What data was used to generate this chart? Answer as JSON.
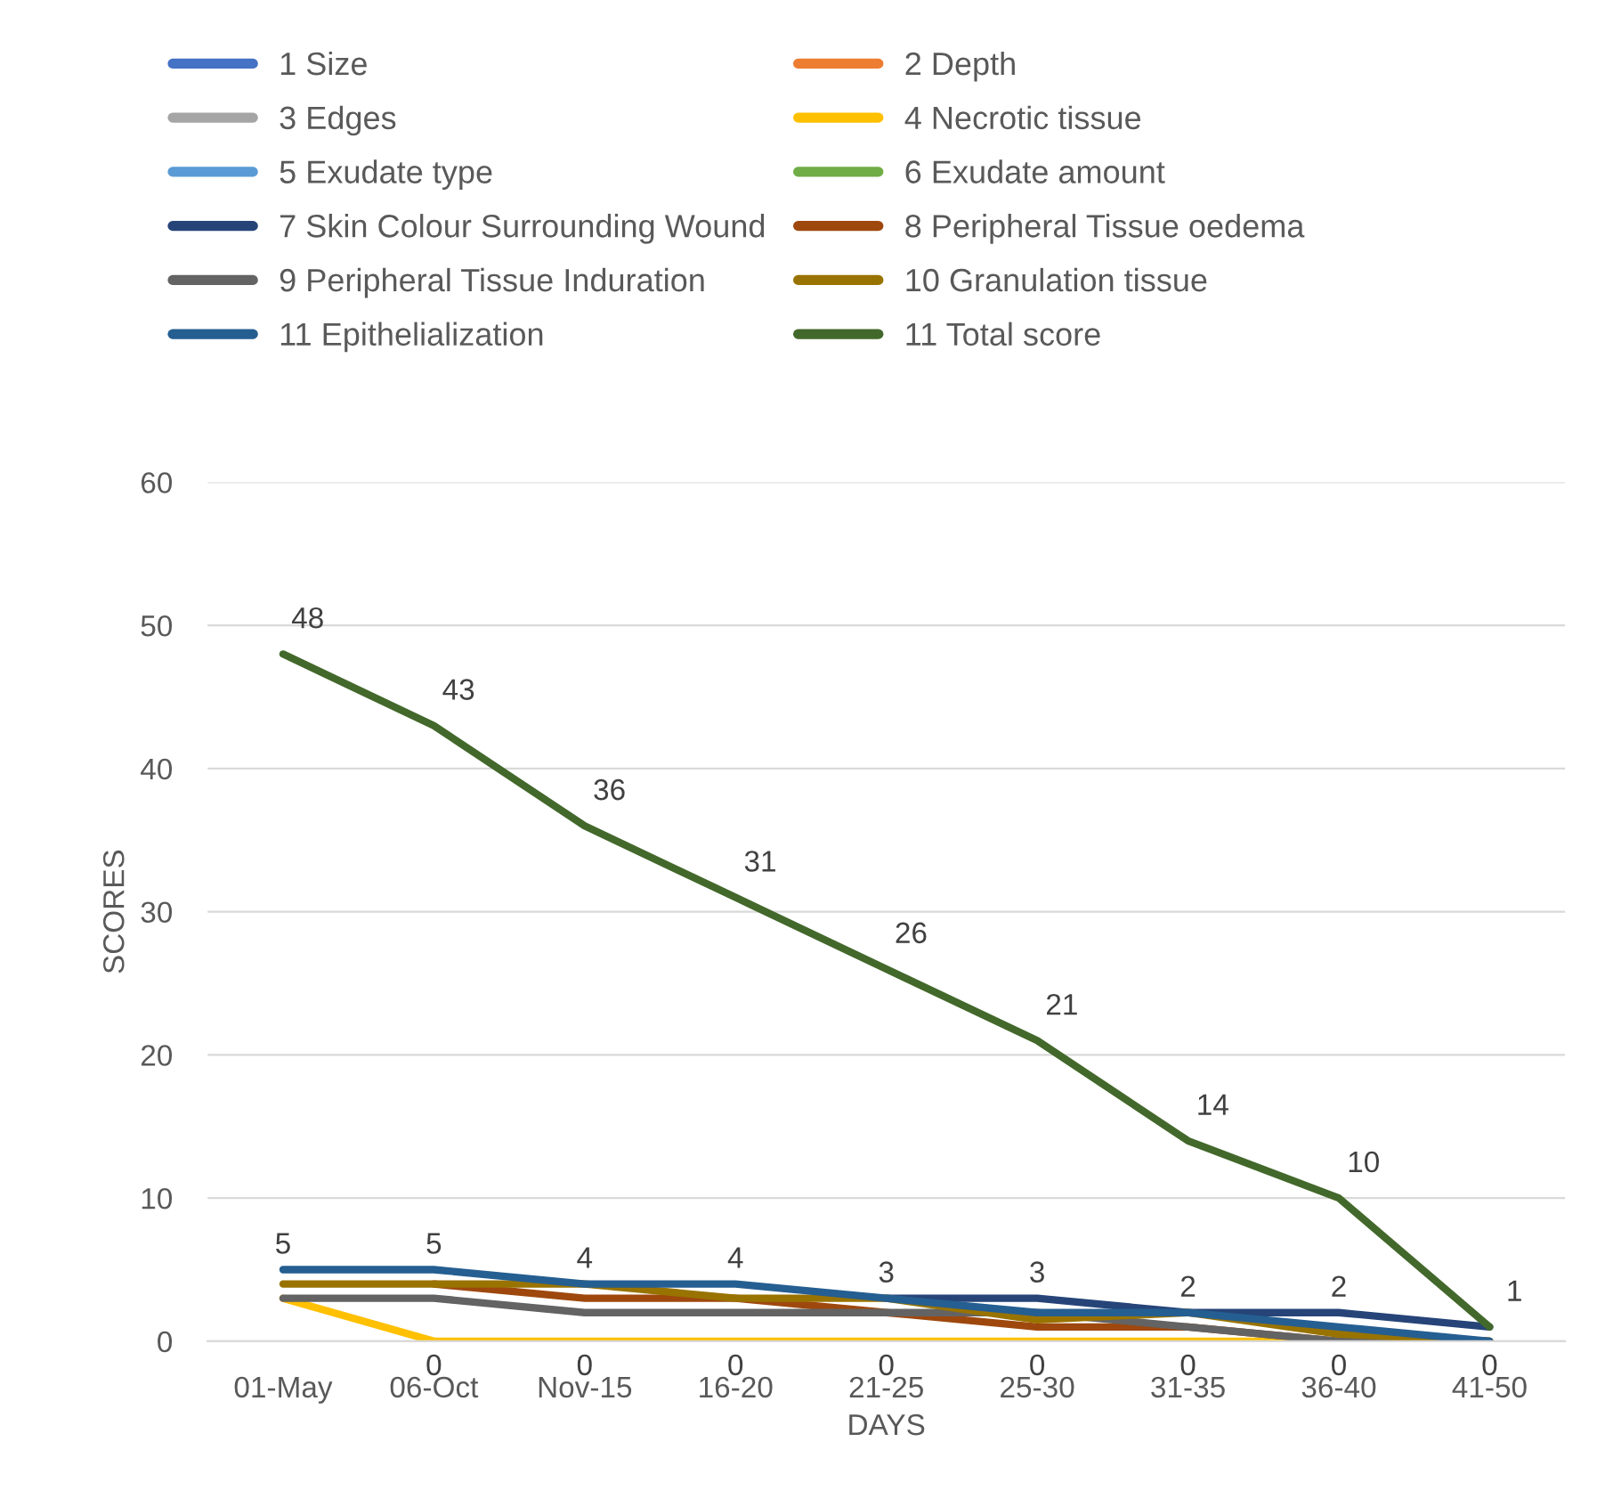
{
  "chart_data": {
    "type": "line",
    "xlabel": "DAYS",
    "ylabel": "SCORES",
    "categories": [
      "01-May",
      "06-Oct",
      "Nov-15",
      "16-20",
      "21-25",
      "25-30",
      "31-35",
      "36-40",
      "41-50"
    ],
    "ylim": [
      0,
      60
    ],
    "yticks": [
      0,
      10,
      20,
      30,
      40,
      50,
      60
    ],
    "grid": "y",
    "legend": "top",
    "marker": "none",
    "line_style": "solid",
    "series": [
      {
        "name": "1 Size",
        "color": "#4472c4",
        "values": [
          null,
          null,
          null,
          null,
          null,
          null,
          null,
          null,
          null
        ]
      },
      {
        "name": "2 Depth",
        "color": "#ed7d31",
        "values": [
          null,
          null,
          null,
          null,
          null,
          null,
          null,
          null,
          null
        ]
      },
      {
        "name": "3 Edges",
        "color": "#a5a5a5",
        "values": [
          null,
          null,
          null,
          null,
          null,
          null,
          null,
          null,
          null
        ]
      },
      {
        "name": "4 Necrotic tissue",
        "color": "#ffc000",
        "values": [
          3,
          0,
          0,
          0,
          0,
          0,
          0,
          0,
          0
        ],
        "value_labels": [
          null,
          "0",
          "0",
          "0",
          "0",
          "0",
          "0",
          "0",
          "0"
        ]
      },
      {
        "name": "5 Exudate type",
        "color": "#5b9bd5",
        "values": [
          null,
          null,
          null,
          null,
          null,
          null,
          null,
          null,
          null
        ]
      },
      {
        "name": "6 Exudate amount",
        "color": "#70ad47",
        "values": [
          null,
          null,
          null,
          null,
          null,
          null,
          null,
          null,
          null
        ]
      },
      {
        "name": "7 Skin Colour Surrounding Wound",
        "color": "#264478",
        "values": [
          null,
          null,
          null,
          null,
          3,
          3,
          2,
          2,
          1
        ],
        "value_labels": [
          null,
          null,
          null,
          null,
          "3",
          "3",
          "2",
          "2",
          null
        ]
      },
      {
        "name": "8 Peripheral Tissue oedema",
        "color": "#9e480e",
        "values": [
          null,
          4,
          3,
          3,
          2,
          1,
          1,
          0,
          0
        ]
      },
      {
        "name": "9 Peripheral Tissue Induration",
        "color": "#636363",
        "values": [
          3,
          3,
          2,
          2,
          2,
          2,
          1,
          0,
          0
        ]
      },
      {
        "name": "10 Granulation tissue",
        "color": "#997300",
        "values": [
          4,
          4,
          4,
          3,
          3,
          1.5,
          2,
          0.5,
          0
        ]
      },
      {
        "name": "11 Epithelialization",
        "color": "#255e91",
        "values": [
          5,
          5,
          4,
          4,
          3,
          2,
          2,
          1,
          0
        ],
        "value_labels": [
          "5",
          "5",
          "4",
          "4",
          null,
          null,
          null,
          null,
          null
        ]
      },
      {
        "name": "11 Total score",
        "color": "#43682b",
        "values": [
          48,
          43,
          36,
          31,
          26,
          21,
          14,
          10,
          1
        ],
        "value_labels": [
          "48",
          "43",
          "36",
          "31",
          "26",
          "21",
          "14",
          "10",
          "1"
        ]
      }
    ]
  }
}
